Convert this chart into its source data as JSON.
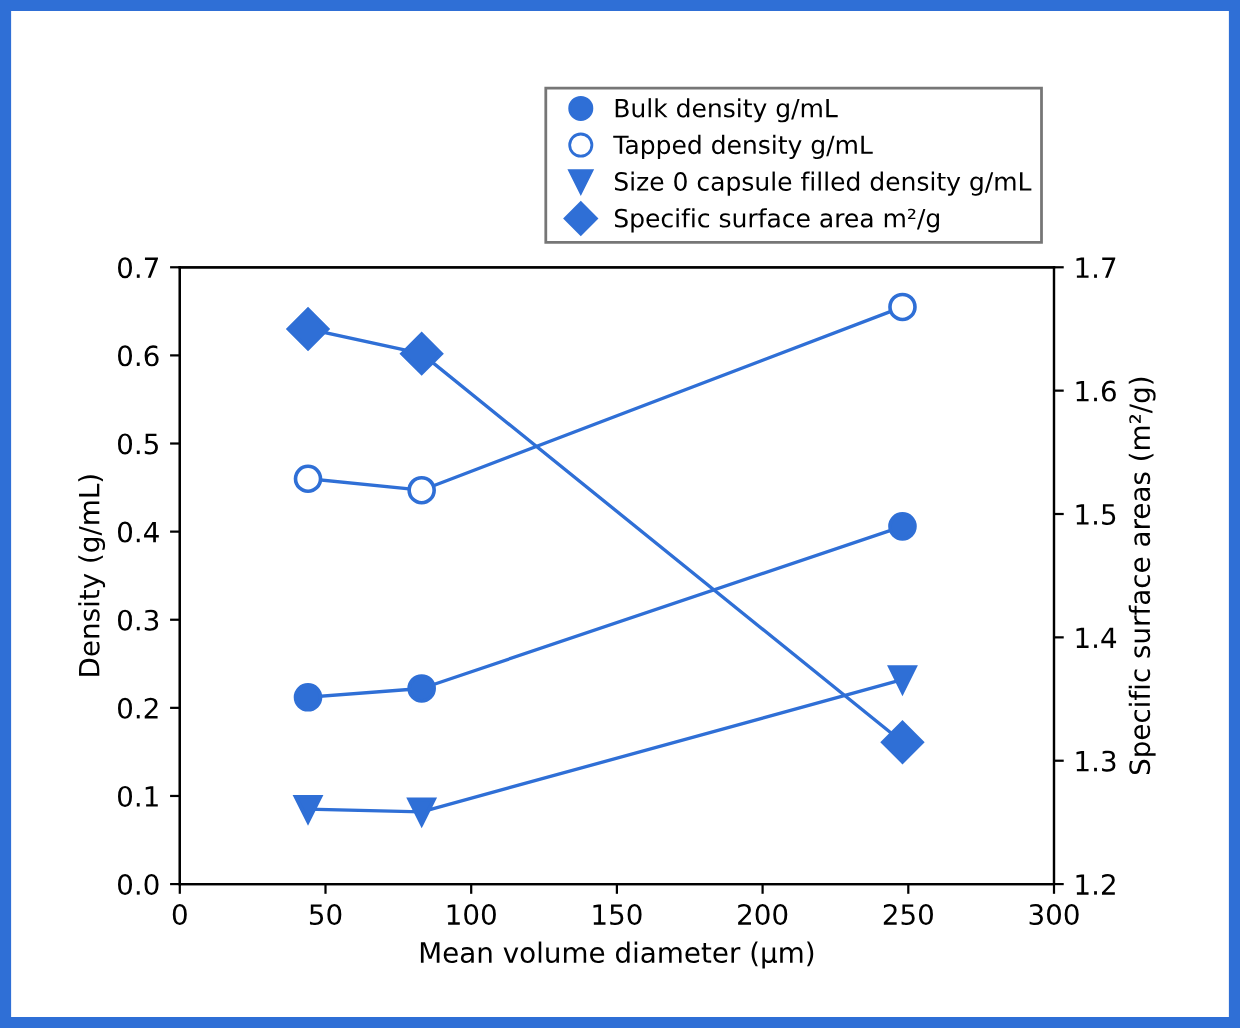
{
  "chart_data": {
    "type": "line",
    "xlabel": "Mean volume diameter (µm)",
    "ylabel": "Density (g/mL)",
    "y2label": "Specific surface areas (m²/g)",
    "x": [
      44,
      83,
      248
    ],
    "series": [
      {
        "name": "Bulk density g/mL",
        "color": "#2f6fd6",
        "values": [
          0.212,
          0.222,
          0.406
        ],
        "marker": "circle"
      },
      {
        "name": "Tapped density g/mL",
        "color": "#2f6fd6",
        "values": [
          0.46,
          0.447,
          0.655
        ],
        "marker": "circle"
      },
      {
        "name": "Size 0 capsule filled density g/mL",
        "color": "#2f6fd6",
        "values": [
          0.085,
          0.082,
          0.232
        ],
        "marker": "triangle"
      },
      {
        "name": "Specific surface area m²/g",
        "color": "#2f6fd6",
        "values": [
          1.65,
          1.63,
          1.315
        ],
        "marker": "diamond",
        "axis": "y2"
      }
    ],
    "xlim": [
      0,
      300
    ],
    "xticks": [
      0,
      50,
      100,
      150,
      200,
      250,
      300
    ],
    "ylim": [
      0,
      0.7
    ],
    "yticks": [
      {
        "value": 0,
        "label": "0.0"
      },
      0.1,
      0.2,
      0.3,
      0.4,
      0.5,
      0.6,
      0.7
    ],
    "y2lim": [
      1.2,
      1.7
    ],
    "y2ticks": [
      1.2,
      1.3,
      1.4,
      1.5,
      1.6,
      1.7
    ],
    "legend": "top right",
    "grid": false,
    "line_style": "solid"
  }
}
